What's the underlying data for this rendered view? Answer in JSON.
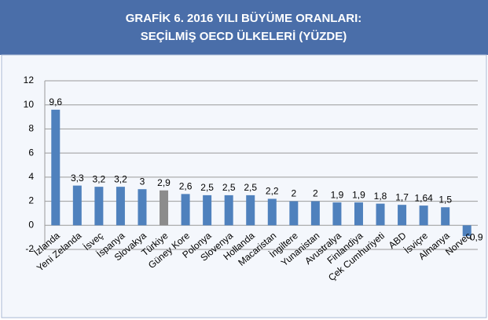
{
  "chart_data": {
    "type": "bar",
    "title": "GRAFİK 6. 2016 YILI BÜYÜME ORANLARI:",
    "subtitle": "SEÇİLMİŞ OECD ÜLKELERİ (YÜZDE)",
    "categories": [
      "İzlanda",
      "Yeni Zelanda",
      "İsveç",
      "İspanya",
      "Slovakya",
      "Türkiye",
      "Güney Kore",
      "Polonya",
      "Slovenya",
      "Hollanda",
      "Macaristan",
      "İngiltere",
      "Yunanistan",
      "Avustralya",
      "Finlandiya",
      "Çek Cumhuriyeti",
      "ABD",
      "İsviçre",
      "Almanya",
      "Norveç"
    ],
    "values": [
      9.6,
      3.3,
      3.2,
      3.2,
      3,
      2.9,
      2.6,
      2.5,
      2.5,
      2.5,
      2.2,
      2,
      2,
      1.9,
      1.9,
      1.8,
      1.7,
      1.64,
      1.5,
      -0.9
    ],
    "value_labels": [
      "9,6",
      "3,3",
      "3,2",
      "3,2",
      "3",
      "2,9",
      "2,6",
      "2,5",
      "2,5",
      "2,5",
      "2,2",
      "2",
      "2",
      "1,9",
      "1,9",
      "1,8",
      "1,7",
      "1,64",
      "1,5",
      "-0,9"
    ],
    "colors": [
      "#4f81bd",
      "#4f81bd",
      "#4f81bd",
      "#4f81bd",
      "#4f81bd",
      "#8c8c8c",
      "#4f81bd",
      "#4f81bd",
      "#4f81bd",
      "#4f81bd",
      "#4f81bd",
      "#4f81bd",
      "#4f81bd",
      "#4f81bd",
      "#4f81bd",
      "#4f81bd",
      "#4f81bd",
      "#4f81bd",
      "#4f81bd",
      "#4f81bd"
    ],
    "ylim": [
      -2,
      12
    ],
    "yticks": [
      -2,
      0,
      2,
      4,
      6,
      8,
      10,
      12
    ],
    "grid": true
  }
}
